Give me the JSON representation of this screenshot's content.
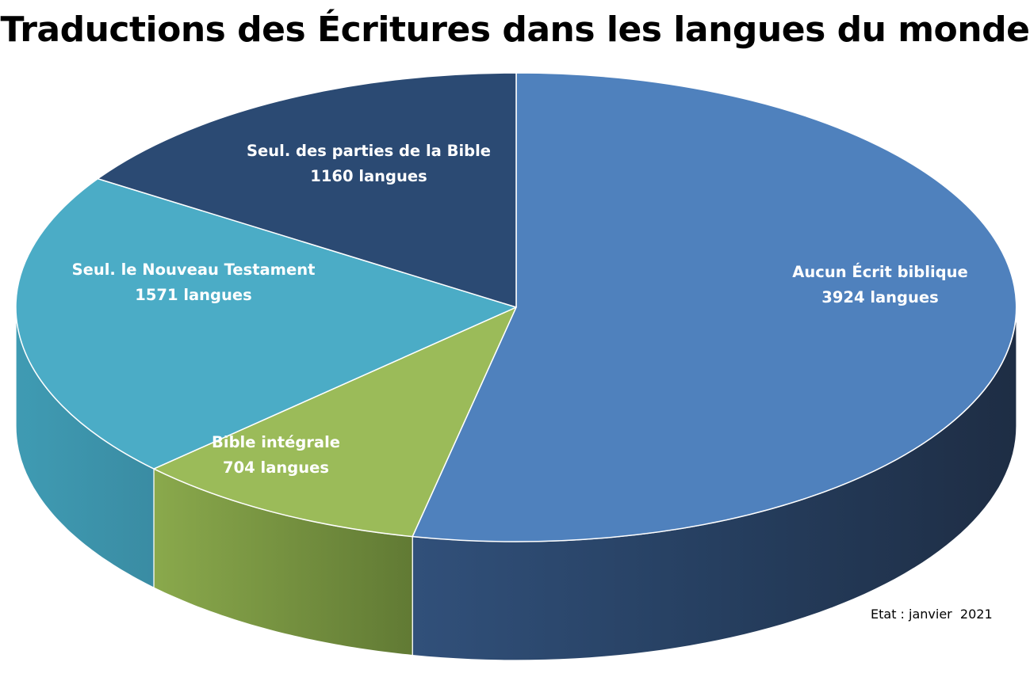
{
  "chart_data": {
    "type": "pie",
    "title": "Traductions des Écritures dans les langues du monde",
    "note": "Etat : janvier  2021",
    "slices": [
      {
        "label": "Aucun Écrit biblique",
        "value_text": "3924 langues",
        "value": 3924,
        "color": "#4f81bd",
        "side": "#1f2f48"
      },
      {
        "label": "Bible intégrale",
        "value_text": "704 langues",
        "value": 704,
        "color": "#9bbb59",
        "side": "#6b8438"
      },
      {
        "label": "Seul. le Nouveau Testament",
        "value_text": "1571 langues",
        "value": 1571,
        "color": "#4bacc6",
        "side": "#36879c"
      },
      {
        "label": "Seul. des parties de la Bible",
        "value_text": "1160 langues",
        "value": 1160,
        "color": "#2b4a73",
        "side": "#1c304c"
      }
    ]
  }
}
